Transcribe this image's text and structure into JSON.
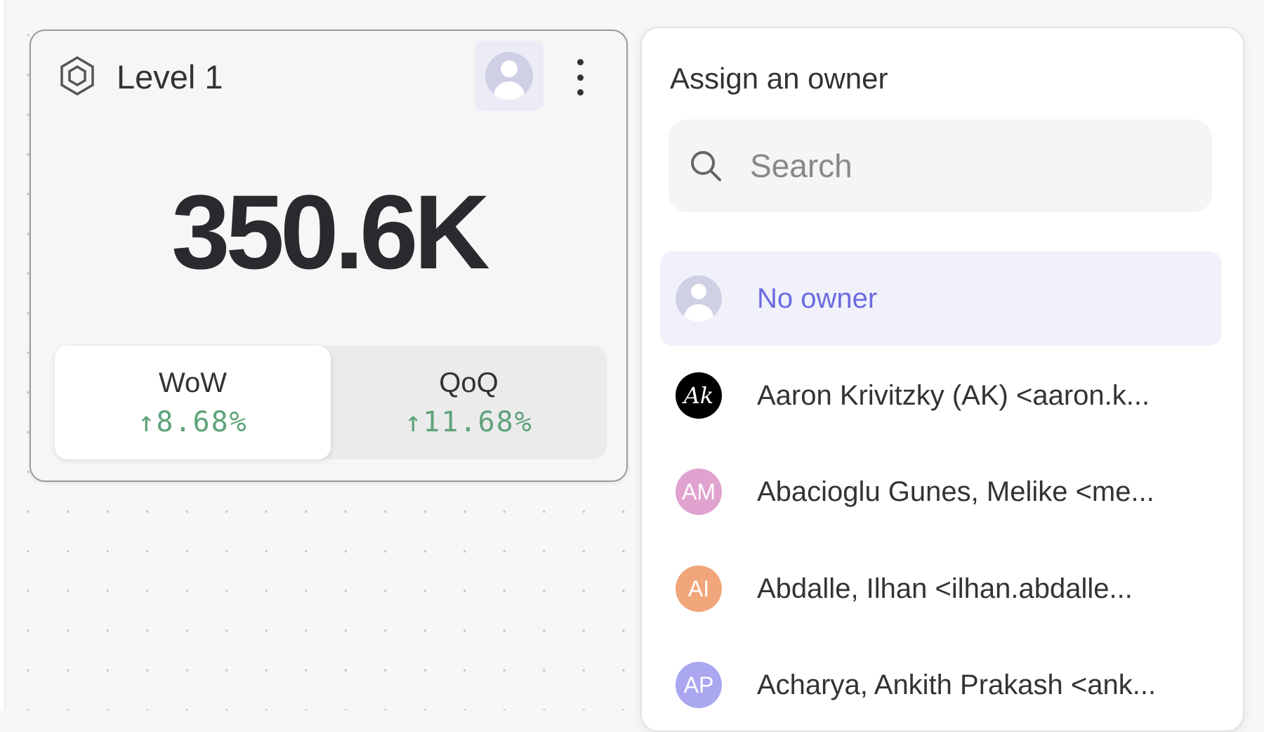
{
  "card": {
    "title": "Level 1",
    "value": "350.6K",
    "comparisons": [
      {
        "label": "WoW",
        "change": "↑8.68%",
        "active": true
      },
      {
        "label": "QoQ",
        "change": "↑11.68%",
        "active": false
      }
    ],
    "positive_color": "#5fa37a"
  },
  "owner_panel": {
    "title": "Assign an owner",
    "search_placeholder": "Search",
    "items": [
      {
        "label": "No owner",
        "initials": "",
        "color": "#d0d0e4",
        "selected": true
      },
      {
        "label": "Aaron Krivitzky (AK) <aaron.k...",
        "initials": "Ak",
        "color": "#000000"
      },
      {
        "label": "Abacioglu Gunes, Melike <me...",
        "initials": "AM",
        "color": "#e0a2cf"
      },
      {
        "label": "Abdalle, Ilhan <ilhan.abdalle...",
        "initials": "AI",
        "color": "#f0a57a"
      },
      {
        "label": "Acharya, Ankith Prakash <ank...",
        "initials": "AP",
        "color": "#aaa7f0"
      }
    ],
    "accent_color": "#6b6be0"
  }
}
